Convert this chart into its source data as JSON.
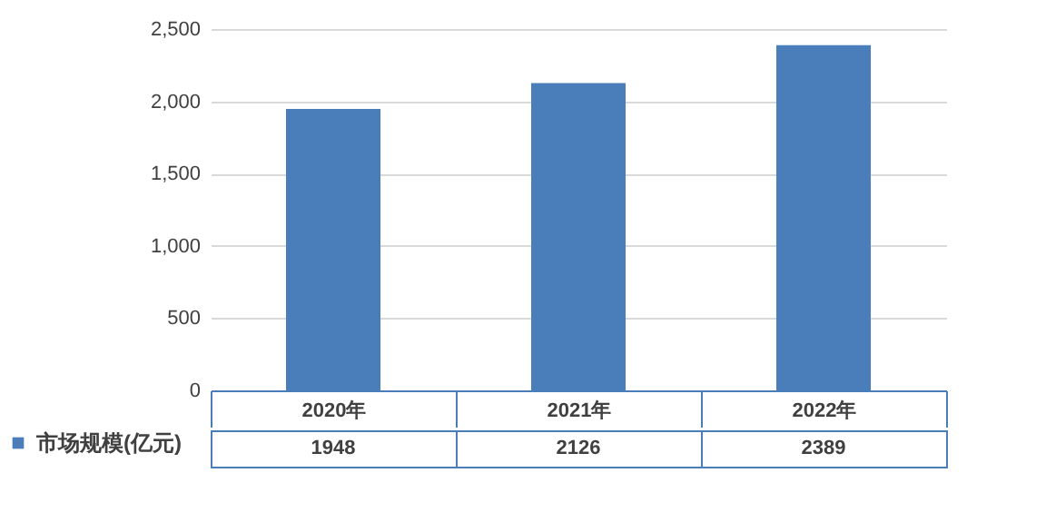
{
  "chart_data": {
    "type": "bar",
    "categories": [
      "2020年",
      "2021年",
      "2022年"
    ],
    "series": [
      {
        "name": "市场规模(亿元)",
        "color": "#4a7ebb",
        "values": [
          1948,
          2126,
          2389
        ]
      }
    ],
    "ylim": [
      0,
      2500
    ],
    "yticks": [
      {
        "value": 0,
        "label": "0"
      },
      {
        "value": 500,
        "label": "500"
      },
      {
        "value": 1000,
        "label": "1,000"
      },
      {
        "value": 1500,
        "label": "1,500"
      },
      {
        "value": 2000,
        "label": "2,000"
      },
      {
        "value": 2500,
        "label": "2,500"
      }
    ],
    "grid": "y",
    "data_labels": true,
    "legend": "bottom left"
  }
}
